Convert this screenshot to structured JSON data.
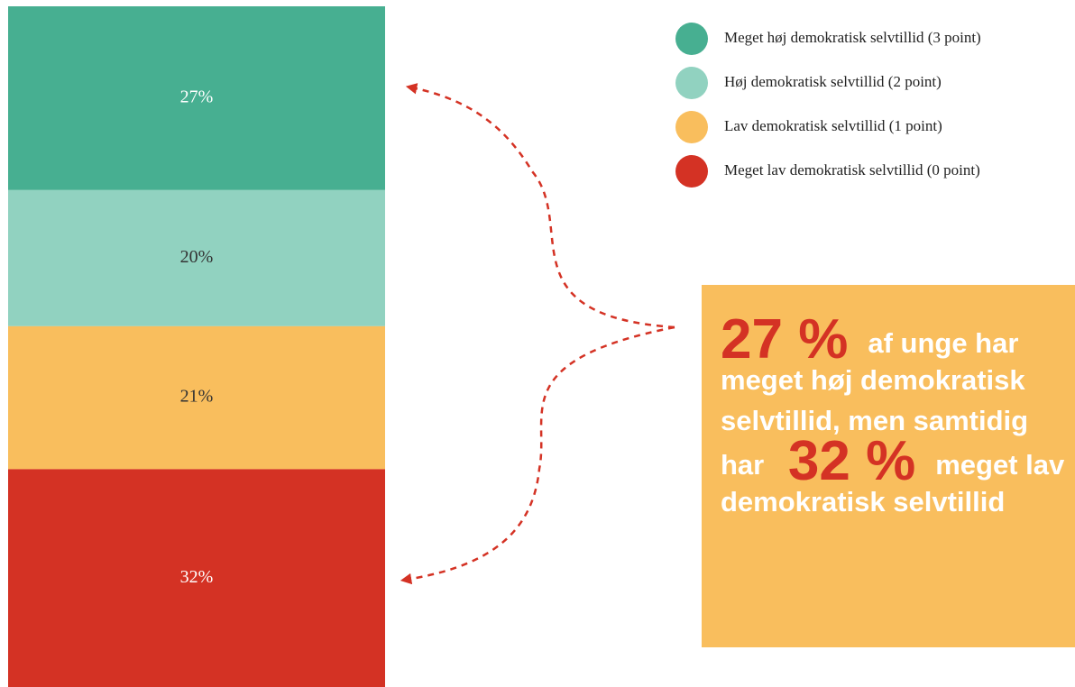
{
  "chart_data": {
    "type": "stacked_bar",
    "series": [
      {
        "name": "Meget høj demokratisk selvtillid (3 point)",
        "color": "#47af91",
        "values": [
          27
        ],
        "value_labels": [
          "27%"
        ]
      },
      {
        "name": "Høj demokratisk selvtillid (2 point)",
        "color": "#91d2c0",
        "values": [
          20
        ],
        "value_labels": [
          "20%"
        ]
      },
      {
        "name": "Lav demokratisk selvtillid (1 point)",
        "color": "#f9be5d",
        "values": [
          21
        ],
        "value_labels": [
          "21%"
        ]
      },
      {
        "name": "Meget lav demokratisk selvtillid (0 point)",
        "color": "#d43224",
        "values": [
          32
        ],
        "value_labels": [
          "32%"
        ]
      }
    ],
    "callout": [
      [
        {
          "text": "27 %",
          "highlight": true
        },
        {
          "text": "af unge har"
        }
      ],
      [
        {
          "text": "meget høj demokratisk"
        }
      ],
      [
        {
          "text": "selvtillid, men samtidig"
        }
      ],
      [
        {
          "text": "har"
        },
        {
          "text": "32 %",
          "highlight": true
        },
        {
          "text": "meget lav"
        }
      ],
      [
        {
          "text": "demokratisk selvtillid"
        }
      ]
    ]
  }
}
